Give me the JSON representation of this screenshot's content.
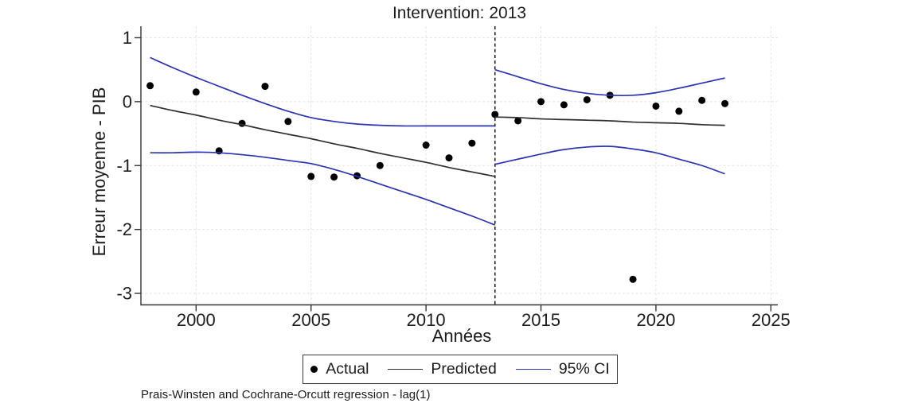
{
  "chart_data": {
    "type": "scatter+line",
    "title": "Intervention: 2013",
    "xlabel": "Années",
    "ylabel": "Erreur moyenne - PIB",
    "note": "Prais-Winsten and Cochrane-Orcutt regression - lag(1)",
    "xlim": [
      1997.6,
      2025.3
    ],
    "ylim": [
      -3.18,
      1.18
    ],
    "xticks": [
      2000,
      2005,
      2010,
      2015,
      2020,
      2025
    ],
    "yticks": [
      1,
      0,
      -1,
      -2,
      -3
    ],
    "grid": true,
    "intervention_year": 2013,
    "colors": {
      "actual": "#000000",
      "predicted": "#2f2f2f",
      "ci": "#2a33b2",
      "intervention_line": "#1a1a1a",
      "grid": "#e3e3e3",
      "axis": "#333333"
    },
    "legend": {
      "position": "bottom-center",
      "items": [
        {
          "label": "Actual",
          "type": "marker"
        },
        {
          "label": "Predicted",
          "type": "line"
        },
        {
          "label": "95% CI",
          "type": "line"
        }
      ]
    },
    "series": [
      {
        "name": "Actual",
        "type": "scatter",
        "x": [
          1998,
          2000,
          2001,
          2002,
          2003,
          2004,
          2005,
          2006,
          2007,
          2008,
          2010,
          2011,
          2012,
          2013,
          2014,
          2015,
          2016,
          2017,
          2018,
          2019,
          2020,
          2021,
          2022,
          2023
        ],
        "y": [
          0.25,
          0.15,
          -0.77,
          -0.34,
          0.24,
          -0.31,
          -1.17,
          -1.18,
          -1.16,
          -1.0,
          -0.68,
          -0.88,
          -0.65,
          -0.2,
          -0.3,
          0.0,
          -0.05,
          0.03,
          0.1,
          -2.78,
          -0.07,
          -0.15,
          0.02,
          -0.03
        ]
      },
      {
        "name": "Predicted (pre)",
        "type": "line",
        "role": "predicted",
        "x": [
          1998,
          1999,
          2000,
          2001,
          2002,
          2003,
          2004,
          2005,
          2006,
          2007,
          2008,
          2009,
          2010,
          2011,
          2012,
          2013
        ],
        "y": [
          -0.06,
          -0.14,
          -0.21,
          -0.29,
          -0.36,
          -0.44,
          -0.51,
          -0.58,
          -0.66,
          -0.73,
          -0.81,
          -0.88,
          -0.95,
          -1.03,
          -1.1,
          -1.17
        ]
      },
      {
        "name": "Predicted (post)",
        "type": "line",
        "role": "predicted",
        "x": [
          2013,
          2014,
          2015,
          2016,
          2017,
          2018,
          2019,
          2020,
          2021,
          2022,
          2023
        ],
        "y": [
          -0.24,
          -0.25,
          -0.27,
          -0.28,
          -0.29,
          -0.3,
          -0.32,
          -0.33,
          -0.34,
          -0.36,
          -0.37
        ]
      },
      {
        "name": "95% CI upper (pre)",
        "type": "line",
        "role": "ci",
        "x": [
          1998,
          1999,
          2000,
          2001,
          2002,
          2003,
          2004,
          2005,
          2006,
          2007,
          2008,
          2009,
          2010,
          2011,
          2012,
          2013
        ],
        "y": [
          0.69,
          0.53,
          0.38,
          0.24,
          0.1,
          -0.03,
          -0.15,
          -0.25,
          -0.31,
          -0.35,
          -0.37,
          -0.38,
          -0.38,
          -0.38,
          -0.38,
          -0.38
        ]
      },
      {
        "name": "95% CI lower (pre)",
        "type": "line",
        "role": "ci",
        "x": [
          1998,
          1999,
          2000,
          2001,
          2002,
          2003,
          2004,
          2005,
          2006,
          2007,
          2008,
          2009,
          2010,
          2011,
          2012,
          2013
        ],
        "y": [
          -0.8,
          -0.8,
          -0.79,
          -0.8,
          -0.83,
          -0.87,
          -0.92,
          -0.97,
          -1.06,
          -1.17,
          -1.29,
          -1.41,
          -1.53,
          -1.66,
          -1.79,
          -1.93
        ]
      },
      {
        "name": "95% CI upper (post)",
        "type": "line",
        "role": "ci",
        "x": [
          2013,
          2014,
          2015,
          2016,
          2017,
          2018,
          2019,
          2020,
          2021,
          2022,
          2023
        ],
        "y": [
          0.5,
          0.39,
          0.28,
          0.19,
          0.13,
          0.1,
          0.1,
          0.14,
          0.21,
          0.29,
          0.37
        ]
      },
      {
        "name": "95% CI lower (post)",
        "type": "line",
        "role": "ci",
        "x": [
          2013,
          2014,
          2015,
          2016,
          2017,
          2018,
          2019,
          2020,
          2021,
          2022,
          2023
        ],
        "y": [
          -0.98,
          -0.9,
          -0.82,
          -0.75,
          -0.71,
          -0.7,
          -0.74,
          -0.8,
          -0.9,
          -1.0,
          -1.13
        ]
      }
    ]
  }
}
